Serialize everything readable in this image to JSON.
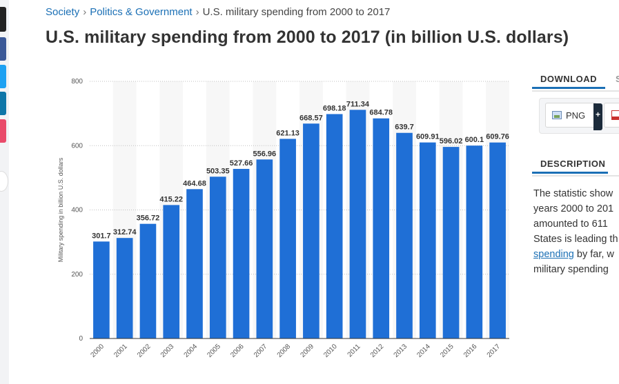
{
  "breadcrumb": {
    "items": [
      "Society",
      "Politics & Government"
    ],
    "current": "U.S. military spending from 2000 to 2017"
  },
  "page_title": "U.S. military spending from 2000 to 2017 (in billion U.S. dollars)",
  "chart_data": {
    "type": "bar",
    "categories": [
      "2000",
      "2001",
      "2002",
      "2003",
      "2004",
      "2005",
      "2006",
      "2007",
      "2008",
      "2009",
      "2010",
      "2011",
      "2012",
      "2013",
      "2014",
      "2015",
      "2016",
      "2017"
    ],
    "values": [
      301.7,
      312.74,
      356.72,
      415.22,
      464.68,
      503.35,
      527.66,
      556.96,
      621.13,
      668.57,
      698.18,
      711.34,
      684.78,
      639.7,
      609.91,
      596.02,
      600.1,
      609.76
    ],
    "value_labels": [
      "301.7",
      "312.74",
      "356.72",
      "415.22",
      "464.68",
      "503.35",
      "527.66",
      "556.96",
      "621.13",
      "668.57",
      "698.18",
      "711.34",
      "684.78",
      "639.7",
      "609.91",
      "596.02",
      "600.1",
      "609.76"
    ],
    "ylabel": "Military spending in billion U.S. dollars",
    "xlabel": "",
    "ylim": [
      0,
      800
    ],
    "yticks": [
      0,
      200,
      400,
      600,
      800
    ],
    "grid": true,
    "color": "#1f6fd6"
  },
  "panel": {
    "download_tab": "DOWNLOAD",
    "next_tab": "S",
    "png_label": "PNG",
    "plus": "+",
    "description_tab": "DESCRIPTION",
    "description_lines": [
      {
        "text": "The statistic show",
        "link": ""
      },
      {
        "text": "years 2000 to 201",
        "link": ""
      },
      {
        "text": "amounted to 611",
        "link": ""
      },
      {
        "text": "States is leading th",
        "link": ""
      },
      {
        "text": " by far, w",
        "link": "spending"
      },
      {
        "text": "military spending",
        "link": ""
      }
    ]
  }
}
